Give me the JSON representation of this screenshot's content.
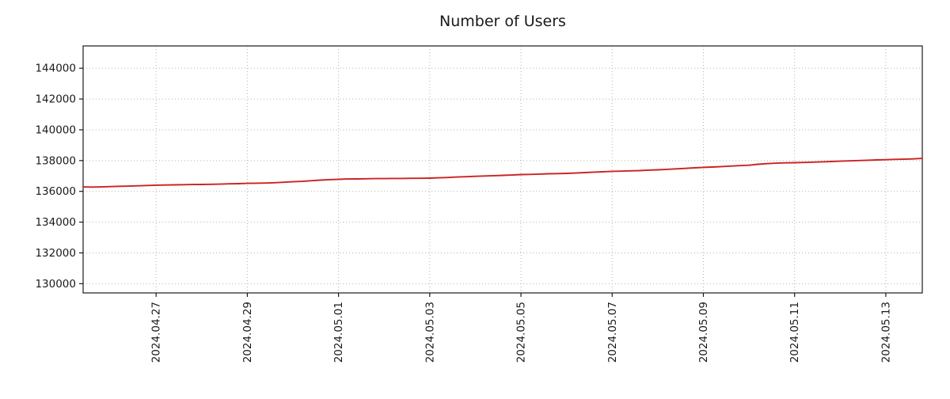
{
  "chart_data": {
    "type": "line",
    "title": "Number of Users",
    "xlabel": "",
    "ylabel": "",
    "grid": true,
    "legend": "none",
    "line_color": "#cc2222",
    "grid_color": "#b3b3b3",
    "axis_color": "#1a1a1a",
    "x_tick_labels": [
      "2024.04.27",
      "2024.04.29",
      "2024.05.01",
      "2024.05.03",
      "2024.05.05",
      "2024.05.07",
      "2024.05.09",
      "2024.05.11",
      "2024.05.13"
    ],
    "x_tick_positions_days": [
      1.6,
      3.6,
      5.6,
      7.6,
      9.6,
      11.6,
      13.6,
      15.6,
      17.6
    ],
    "x_range_days": [
      0,
      18.4
    ],
    "y_ticks": [
      130000,
      132000,
      134000,
      136000,
      138000,
      140000,
      142000,
      144000
    ],
    "ylim": [
      129400,
      145450
    ],
    "series": [
      {
        "name": "users",
        "color": "#cc2222",
        "x_start_day": 0,
        "x_step_days": 0.2,
        "values": [
          136290,
          136280,
          136290,
          136310,
          136330,
          136340,
          136360,
          136380,
          136400,
          136410,
          136420,
          136430,
          136440,
          136450,
          136460,
          136470,
          136490,
          136500,
          136520,
          136530,
          136540,
          136560,
          136590,
          136620,
          136650,
          136690,
          136730,
          136760,
          136780,
          136800,
          136810,
          136820,
          136830,
          136830,
          136840,
          136840,
          136850,
          136850,
          136860,
          136880,
          136900,
          136930,
          136950,
          136980,
          137000,
          137020,
          137040,
          137060,
          137090,
          137100,
          137120,
          137140,
          137150,
          137170,
          137190,
          137220,
          137250,
          137270,
          137300,
          137310,
          137330,
          137350,
          137380,
          137400,
          137430,
          137460,
          137490,
          137530,
          137560,
          137580,
          137610,
          137640,
          137670,
          137700,
          137760,
          137800,
          137830,
          137850,
          137860,
          137880,
          137900,
          137920,
          137940,
          137960,
          137980,
          138000,
          138020,
          138040,
          138060,
          138080,
          138090,
          138110,
          138140
        ]
      }
    ]
  }
}
